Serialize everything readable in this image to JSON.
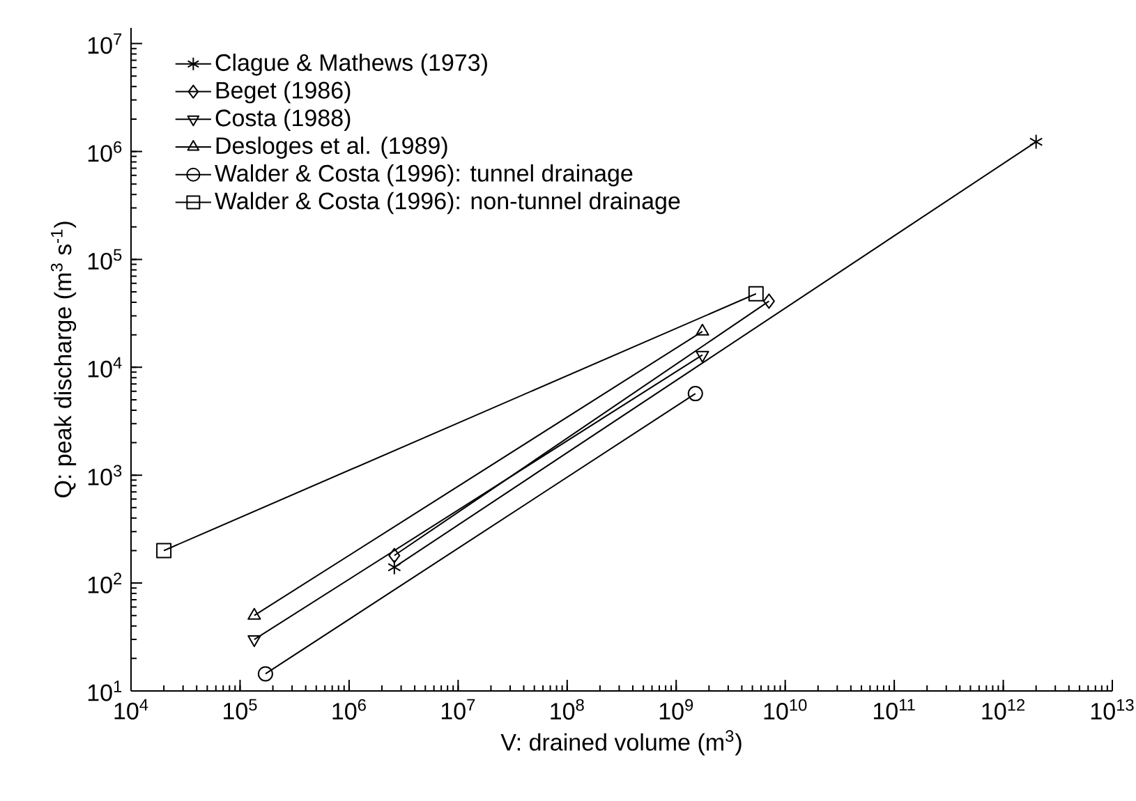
{
  "chart_data": {
    "type": "line",
    "log": "xy",
    "grid": false,
    "legend": "top left",
    "xlabel": "V: drained volume (m$^{3}$)",
    "ylabel": "Q: peak discharge (m$^{3}$ s$^{-1}$)",
    "xlim": [
      10000,
      10000000000000.0
    ],
    "ylim": [
      10,
      14000000
    ],
    "xticks": [
      {
        "value": 10000,
        "label": "10$^{4}$"
      },
      {
        "value": 100000,
        "label": "10$^{5}$"
      },
      {
        "value": 1000000,
        "label": "10$^{6}$"
      },
      {
        "value": 10000000,
        "label": "10$^{7}$"
      },
      {
        "value": 100000000,
        "label": "10$^{8}$"
      },
      {
        "value": 1000000000,
        "label": "10$^{9}$"
      },
      {
        "value": 10000000000.0,
        "label": "10$^{10}$"
      },
      {
        "value": 100000000000.0,
        "label": "10$^{11}$"
      },
      {
        "value": 1000000000000.0,
        "label": "10$^{12}$"
      },
      {
        "value": 10000000000000.0,
        "label": "10$^{13}$"
      }
    ],
    "yticks": [
      {
        "value": 10,
        "label": "10$^{1}$"
      },
      {
        "value": 100,
        "label": "10$^{2}$"
      },
      {
        "value": 1000,
        "label": "10$^{3}$"
      },
      {
        "value": 10000,
        "label": "10$^{4}$"
      },
      {
        "value": 100000,
        "label": "10$^{5}$"
      },
      {
        "value": 1000000,
        "label": "10$^{6}$"
      },
      {
        "value": 10000000,
        "label": "10$^{7}$"
      }
    ],
    "series": [
      {
        "name": "Clague & Mathews (1973)",
        "color": "#000000",
        "marker": "cross",
        "x": [
          2600000,
          2000000000000
        ],
        "values": [
          140,
          1230000
        ]
      },
      {
        "name": "Beget (1986)",
        "color": "#000000",
        "marker": "diamond",
        "x": [
          2600000,
          7100000000
        ],
        "values": [
          180,
          41000
        ]
      },
      {
        "name": "Costa (1988)",
        "color": "#000000",
        "marker": "triangle-down",
        "x": [
          135000,
          1740000000
        ],
        "values": [
          30,
          13000
        ]
      },
      {
        "name": "Desloges et al. (1989)",
        "color": "#000000",
        "marker": "triangle",
        "x": [
          135000,
          1740000000
        ],
        "values": [
          50,
          21500
        ]
      },
      {
        "name": "Walder & Costa (1996): tunnel drainage",
        "color": "#000000",
        "marker": "circle",
        "x": [
          171000,
          1500000000
        ],
        "values": [
          14.4,
          5700
        ]
      },
      {
        "name": "Walder & Costa (1996): non-tunnel drainage",
        "color": "#000000",
        "marker": "square",
        "x": [
          20000,
          5400000000
        ],
        "values": [
          200,
          48000
        ]
      }
    ]
  }
}
